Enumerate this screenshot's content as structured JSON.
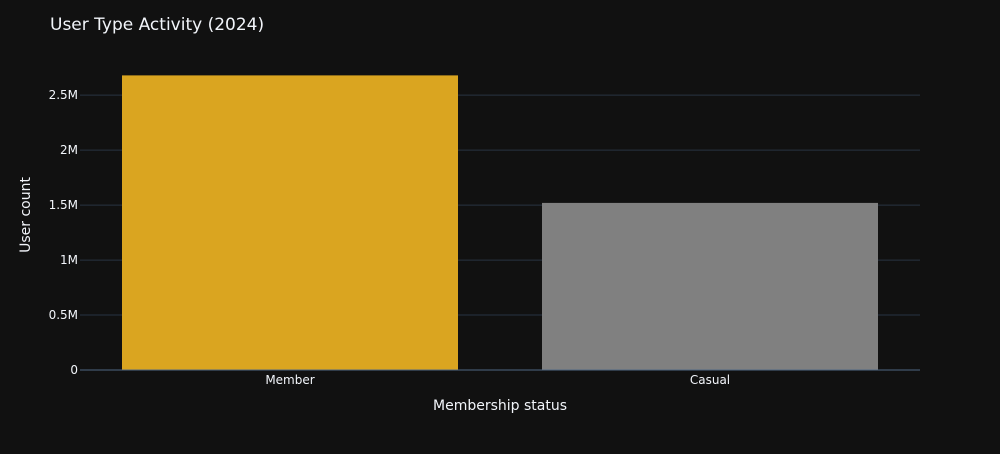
{
  "chart_data": {
    "type": "bar",
    "title": "User Type Activity (2024)",
    "xlabel": "Membership status",
    "ylabel": "User count",
    "categories": [
      "Member",
      "Casual"
    ],
    "values": [
      2680000,
      1520000
    ],
    "colors": [
      "#DAA520",
      "#808080"
    ],
    "ylim": [
      0,
      2820000
    ],
    "yticks": [
      0,
      500000,
      1000000,
      1500000,
      2000000,
      2500000
    ],
    "ytick_labels": [
      "0",
      "0.5M",
      "1M",
      "1.5M",
      "2M",
      "2.5M"
    ],
    "grid": true,
    "legend": false,
    "background": "#111111",
    "grid_color": "#283442",
    "text_color": "#f2f5fa"
  }
}
